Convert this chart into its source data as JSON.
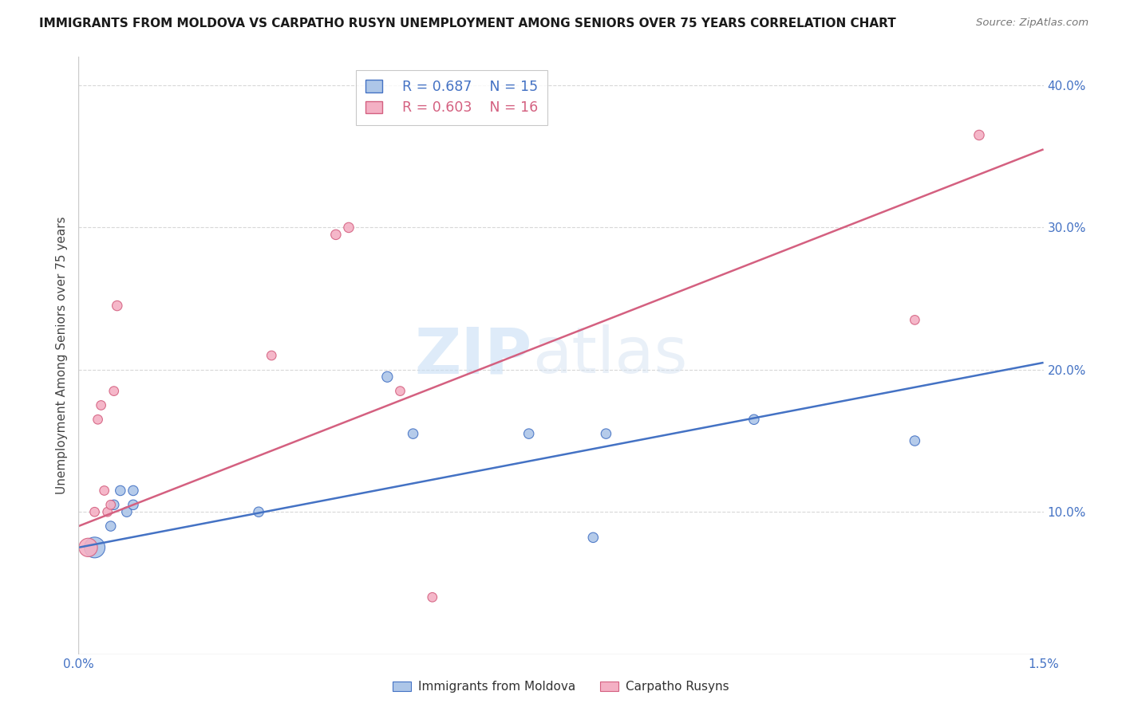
{
  "title": "IMMIGRANTS FROM MOLDOVA VS CARPATHO RUSYN UNEMPLOYMENT AMONG SENIORS OVER 75 YEARS CORRELATION CHART",
  "source": "Source: ZipAtlas.com",
  "ylabel": "Unemployment Among Seniors over 75 years",
  "xlim": [
    0.0,
    0.015
  ],
  "ylim": [
    0.0,
    0.42
  ],
  "xticks": [
    0.0,
    0.003,
    0.006,
    0.009,
    0.012,
    0.015
  ],
  "xtick_labels": [
    "0.0%",
    "",
    "",
    "",
    "",
    "1.5%"
  ],
  "yticks_right": [
    0.0,
    0.1,
    0.2,
    0.3,
    0.4
  ],
  "ytick_labels_right": [
    "",
    "10.0%",
    "20.0%",
    "30.0%",
    "40.0%"
  ],
  "blue_scatter_x": [
    0.00025,
    0.0005,
    0.00055,
    0.00065,
    0.00075,
    0.00085,
    0.00085,
    0.0028,
    0.0048,
    0.0052,
    0.007,
    0.0082,
    0.008,
    0.0105,
    0.013
  ],
  "blue_scatter_y": [
    0.075,
    0.09,
    0.105,
    0.115,
    0.1,
    0.105,
    0.115,
    0.1,
    0.195,
    0.155,
    0.155,
    0.155,
    0.082,
    0.165,
    0.15
  ],
  "blue_scatter_size": [
    350,
    80,
    80,
    80,
    80,
    80,
    80,
    80,
    90,
    80,
    80,
    80,
    80,
    80,
    80
  ],
  "pink_scatter_x": [
    0.00015,
    0.00025,
    0.0003,
    0.00035,
    0.0004,
    0.00045,
    0.0005,
    0.00055,
    0.0006,
    0.003,
    0.004,
    0.0042,
    0.005,
    0.0055,
    0.013,
    0.014
  ],
  "pink_scatter_y": [
    0.075,
    0.1,
    0.165,
    0.175,
    0.115,
    0.1,
    0.105,
    0.185,
    0.245,
    0.21,
    0.295,
    0.3,
    0.185,
    0.04,
    0.235,
    0.365
  ],
  "pink_scatter_size": [
    280,
    70,
    70,
    70,
    70,
    70,
    70,
    70,
    80,
    70,
    80,
    80,
    70,
    70,
    70,
    80
  ],
  "blue_line_x0": 0.0,
  "blue_line_x1": 0.015,
  "blue_line_y0": 0.075,
  "blue_line_y1": 0.205,
  "pink_line_x0": 0.0,
  "pink_line_x1": 0.015,
  "pink_line_y0": 0.09,
  "pink_line_y1": 0.355,
  "blue_color": "#adc6e8",
  "blue_line_color": "#4472c4",
  "pink_color": "#f4b0c4",
  "pink_line_color": "#d46080",
  "legend_blue_r": "R = 0.687",
  "legend_blue_n": "N = 15",
  "legend_pink_r": "R = 0.603",
  "legend_pink_n": "N = 16",
  "watermark_zip": "ZIP",
  "watermark_atlas": "atlas",
  "background_color": "#ffffff",
  "grid_color": "#d8d8d8",
  "axis_color": "#cccccc",
  "tick_color": "#4472c4",
  "ylabel_color": "#444444"
}
